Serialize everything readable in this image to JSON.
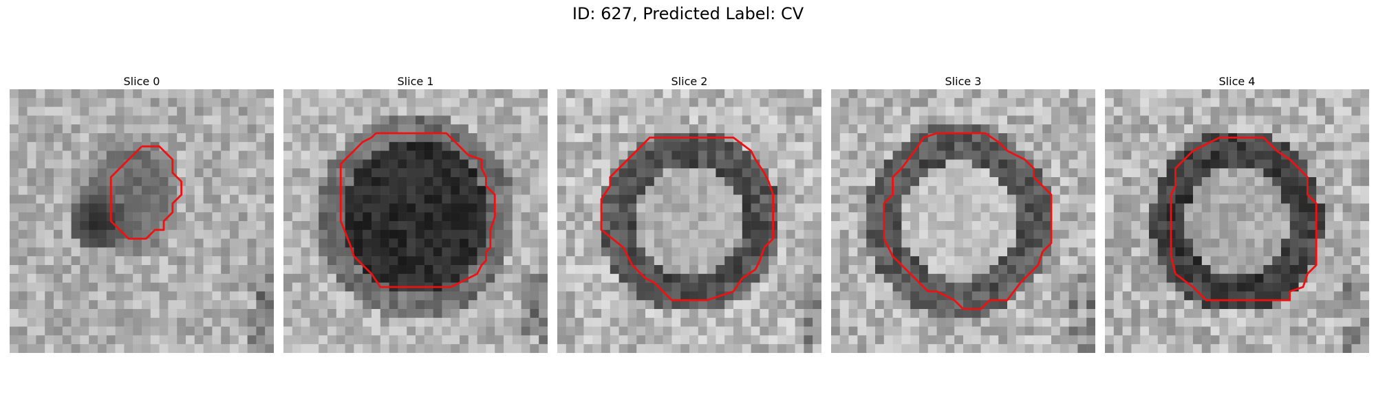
{
  "figure": {
    "title": "ID: 627, Predicted Label: CV",
    "outline_color": "#ee1111"
  },
  "slices": [
    {
      "label": "Slice 0"
    },
    {
      "label": "Slice 1"
    },
    {
      "label": "Slice 2"
    },
    {
      "label": "Slice 3"
    },
    {
      "label": "Slice 4"
    }
  ]
}
